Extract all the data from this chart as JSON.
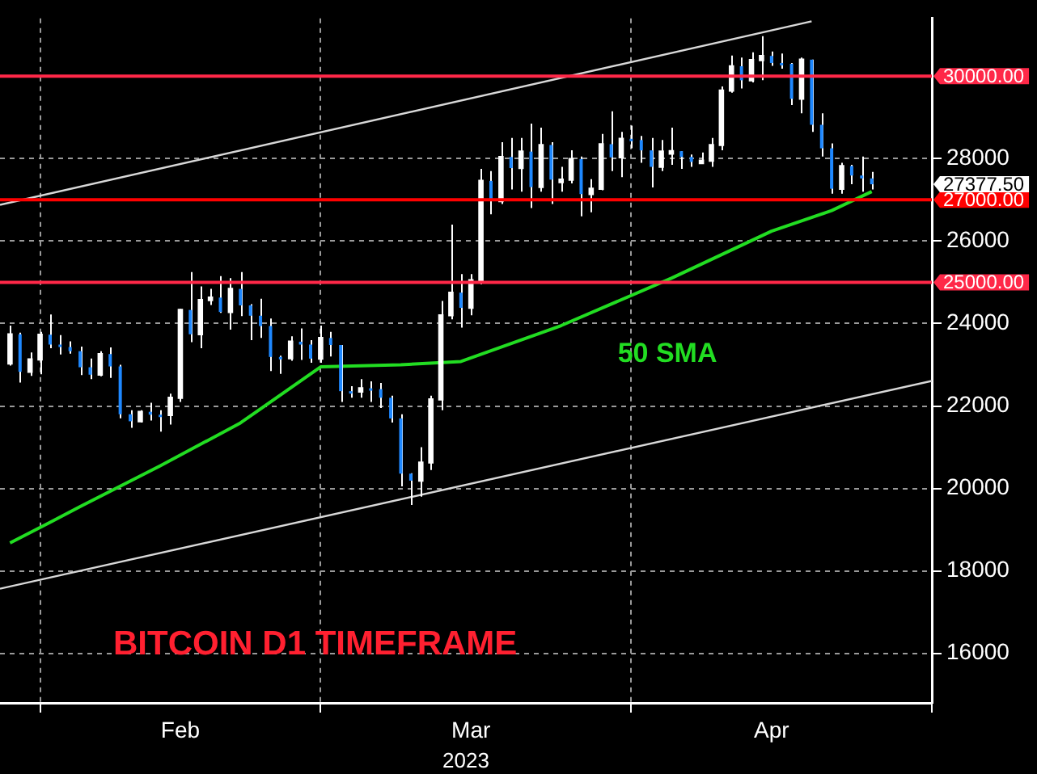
{
  "chart_data": {
    "type": "candlestick",
    "title": "BITCOIN D1 TIMEFRAME",
    "xlabel": "2023",
    "x": [
      "2023-01-29",
      "2023-01-30",
      "2023-01-31",
      "2023-02-01",
      "2023-02-02",
      "2023-02-03",
      "2023-02-04",
      "2023-02-05",
      "2023-02-06",
      "2023-02-07",
      "2023-02-08",
      "2023-02-09",
      "2023-02-10",
      "2023-02-11",
      "2023-02-12",
      "2023-02-13",
      "2023-02-14",
      "2023-02-15",
      "2023-02-16",
      "2023-02-17",
      "2023-02-18",
      "2023-02-19",
      "2023-02-20",
      "2023-02-21",
      "2023-02-22",
      "2023-02-23",
      "2023-02-24",
      "2023-02-25",
      "2023-02-26",
      "2023-02-27",
      "2023-02-28",
      "2023-03-01",
      "2023-03-02",
      "2023-03-03",
      "2023-03-04",
      "2023-03-05",
      "2023-03-06",
      "2023-03-07",
      "2023-03-08",
      "2023-03-09",
      "2023-03-10",
      "2023-03-11",
      "2023-03-12",
      "2023-03-13",
      "2023-03-14",
      "2023-03-15",
      "2023-03-16",
      "2023-03-17",
      "2023-03-18",
      "2023-03-19",
      "2023-03-20",
      "2023-03-21",
      "2023-03-22",
      "2023-03-23",
      "2023-03-24",
      "2023-03-25",
      "2023-03-26",
      "2023-03-27",
      "2023-03-28",
      "2023-03-29",
      "2023-03-30",
      "2023-03-31",
      "2023-04-01",
      "2023-04-02",
      "2023-04-03",
      "2023-04-04",
      "2023-04-05",
      "2023-04-06",
      "2023-04-07",
      "2023-04-08",
      "2023-04-09",
      "2023-04-10",
      "2023-04-11",
      "2023-04-12",
      "2023-04-13",
      "2023-04-14",
      "2023-04-15",
      "2023-04-16",
      "2023-04-17",
      "2023-04-18",
      "2023-04-19",
      "2023-04-20",
      "2023-04-21",
      "2023-04-22",
      "2023-04-23",
      "2023-04-24",
      "2023-04-25"
    ],
    "ohlc": [
      [
        23030,
        23950,
        22980,
        23740
      ],
      [
        23740,
        23780,
        22570,
        22830
      ],
      [
        22830,
        23300,
        22730,
        23130
      ],
      [
        23130,
        23800,
        22770,
        23730
      ],
      [
        23730,
        24220,
        23400,
        23490
      ],
      [
        23490,
        23720,
        23250,
        23430
      ],
      [
        23430,
        23570,
        23270,
        23330
      ],
      [
        23330,
        23440,
        22750,
        22940
      ],
      [
        22940,
        23150,
        22650,
        22760
      ],
      [
        22760,
        23330,
        22720,
        23260
      ],
      [
        23260,
        23420,
        22680,
        22960
      ],
      [
        22960,
        23000,
        21700,
        21800
      ],
      [
        21800,
        21900,
        21470,
        21630
      ],
      [
        21630,
        21900,
        21600,
        21860
      ],
      [
        21860,
        22080,
        21650,
        21790
      ],
      [
        21790,
        21900,
        21380,
        21780
      ],
      [
        21780,
        22300,
        21550,
        22200
      ],
      [
        22200,
        24350,
        22100,
        24330
      ],
      [
        24330,
        25250,
        23550,
        23740
      ],
      [
        23740,
        24900,
        23400,
        24570
      ],
      [
        24570,
        24840,
        24450,
        24630
      ],
      [
        24630,
        25150,
        24260,
        24280
      ],
      [
        24280,
        25100,
        23850,
        24840
      ],
      [
        24840,
        25250,
        24180,
        24440
      ],
      [
        24440,
        24470,
        23600,
        24190
      ],
      [
        24190,
        24600,
        23650,
        23940
      ],
      [
        23940,
        24120,
        22850,
        23190
      ],
      [
        23190,
        23220,
        22780,
        23160
      ],
      [
        23160,
        23690,
        23100,
        23560
      ],
      [
        23560,
        23880,
        23120,
        23490
      ],
      [
        23490,
        23600,
        23050,
        23150
      ],
      [
        23150,
        23950,
        23050,
        23650
      ],
      [
        23650,
        23800,
        23200,
        23480
      ],
      [
        23480,
        23480,
        22100,
        22360
      ],
      [
        22360,
        22480,
        22200,
        22350
      ],
      [
        22350,
        22650,
        22200,
        22430
      ],
      [
        22430,
        22600,
        22100,
        22410
      ],
      [
        22410,
        22560,
        21950,
        22200
      ],
      [
        22200,
        22250,
        21600,
        21700
      ],
      [
        21700,
        21800,
        20050,
        20360
      ],
      [
        20360,
        20370,
        19600,
        20190
      ],
      [
        20190,
        21000,
        19800,
        20630
      ],
      [
        20630,
        22250,
        20450,
        22160
      ],
      [
        22160,
        24550,
        21900,
        24200
      ],
      [
        24200,
        26400,
        24100,
        24750
      ],
      [
        24750,
        25200,
        23900,
        24380
      ],
      [
        24380,
        25200,
        24200,
        25050
      ],
      [
        25050,
        27750,
        24950,
        27460
      ],
      [
        27460,
        27700,
        26650,
        26970
      ],
      [
        26970,
        28400,
        26900,
        28040
      ],
      [
        28040,
        28500,
        27250,
        27770
      ],
      [
        27770,
        28500,
        27200,
        28170
      ],
      [
        28170,
        28850,
        26800,
        27310
      ],
      [
        27310,
        28750,
        27200,
        28330
      ],
      [
        28330,
        28400,
        26900,
        27490
      ],
      [
        27490,
        27800,
        27200,
        27490
      ],
      [
        27490,
        28200,
        27400,
        27990
      ],
      [
        27990,
        28050,
        26600,
        27140
      ],
      [
        27140,
        27500,
        26700,
        27270
      ],
      [
        27270,
        28600,
        27230,
        28350
      ],
      [
        28350,
        29150,
        27700,
        28030
      ],
      [
        28030,
        28650,
        27550,
        28480
      ],
      [
        28480,
        28800,
        28250,
        28450
      ],
      [
        28450,
        28550,
        27900,
        28200
      ],
      [
        28200,
        28500,
        27300,
        27800
      ],
      [
        27800,
        28450,
        27700,
        28170
      ],
      [
        28170,
        28750,
        27850,
        28180
      ],
      [
        28180,
        28180,
        27750,
        28040
      ],
      [
        28040,
        28100,
        27800,
        27920
      ],
      [
        27920,
        28150,
        27880,
        27950
      ],
      [
        27950,
        28500,
        27800,
        28330
      ],
      [
        28330,
        29750,
        28200,
        29650
      ],
      [
        29650,
        30500,
        29600,
        30240
      ],
      [
        30240,
        30450,
        29700,
        29900
      ],
      [
        29900,
        30580,
        29850,
        30390
      ],
      [
        30390,
        30970,
        29900,
        30490
      ],
      [
        30490,
        30600,
        30250,
        30320
      ],
      [
        30320,
        30550,
        30180,
        30300
      ],
      [
        30300,
        30320,
        29300,
        29450
      ],
      [
        29450,
        30450,
        29100,
        30400
      ],
      [
        30400,
        30400,
        28650,
        28820
      ],
      [
        28820,
        29100,
        28050,
        28250
      ],
      [
        28250,
        28370,
        27150,
        27270
      ],
      [
        27270,
        27900,
        27150,
        27820
      ],
      [
        27820,
        27850,
        27380,
        27590
      ],
      [
        27590,
        28050,
        27200,
        27520
      ],
      [
        27520,
        27680,
        27250,
        27377.5
      ]
    ],
    "colors": [
      "#ffffff",
      "#1e88ff",
      "#ffffff",
      "#ffffff",
      "#1e88ff",
      "#1e88ff",
      "#1e88ff",
      "#1e88ff",
      "#1e88ff",
      "#ffffff",
      "#1e88ff",
      "#1e88ff",
      "#1e88ff",
      "#ffffff",
      "#1e88ff",
      "#1e88ff",
      "#ffffff",
      "#ffffff",
      "#1e88ff",
      "#ffffff",
      "#ffffff",
      "#1e88ff",
      "#ffffff",
      "#1e88ff",
      "#1e88ff",
      "#1e88ff",
      "#1e88ff",
      "#1e88ff",
      "#ffffff",
      "#1e88ff",
      "#1e88ff",
      "#ffffff",
      "#1e88ff",
      "#1e88ff",
      "#1e88ff",
      "#ffffff",
      "#1e88ff",
      "#1e88ff",
      "#1e88ff",
      "#1e88ff",
      "#1e88ff",
      "#ffffff",
      "#ffffff",
      "#ffffff",
      "#ffffff",
      "#1e88ff",
      "#ffffff",
      "#ffffff",
      "#1e88ff",
      "#ffffff",
      "#1e88ff",
      "#ffffff",
      "#1e88ff",
      "#ffffff",
      "#1e88ff",
      "#1e88ff",
      "#ffffff",
      "#1e88ff",
      "#ffffff",
      "#ffffff",
      "#1e88ff",
      "#ffffff",
      "#1e88ff",
      "#1e88ff",
      "#1e88ff",
      "#ffffff",
      "#ffffff",
      "#1e88ff",
      "#1e88ff",
      "#ffffff",
      "#ffffff",
      "#ffffff",
      "#ffffff",
      "#1e88ff",
      "#ffffff",
      "#ffffff",
      "#1e88ff",
      "#1e88ff",
      "#1e88ff",
      "#ffffff",
      "#1e88ff",
      "#1e88ff",
      "#1e88ff",
      "#ffffff",
      "#1e88ff",
      "#1e88ff",
      "#1e88ff"
    ],
    "series": [
      {
        "type": "line",
        "name": "50 SMA",
        "color": "#22dd22",
        "x": [
          "2023-01-29",
          "2023-02-02",
          "2023-02-05",
          "2023-02-13",
          "2023-02-21",
          "2023-03-01",
          "2023-03-09",
          "2023-03-15",
          "2023-03-25",
          "2023-04-05",
          "2023-04-15",
          "2023-04-21",
          "2023-04-25"
        ],
        "values": [
          18680,
          19180,
          19560,
          20550,
          21590,
          22950,
          23000,
          23080,
          23950,
          25100,
          26240,
          26740,
          27200
        ]
      },
      {
        "type": "line",
        "color": "#d8d8d8",
        "x": [
          "2023-01-28",
          "2023-04-19"
        ],
        "values": [
          26880,
          31330
        ]
      },
      {
        "type": "line",
        "color": "#d8d8d8",
        "x": [
          "2023-01-28",
          "2023-05-01"
        ],
        "values": [
          17570,
          22610
        ]
      }
    ],
    "xlim": [
      "2023-01-28",
      "2023-05-01"
    ],
    "xticks": [
      {
        "value": "2023-02-01",
        "label": null
      },
      {
        "value": "2023-02-15",
        "label": "Feb"
      },
      {
        "value": "2023-03-01",
        "label": null
      },
      {
        "value": "2023-03-16",
        "label": "Mar"
      },
      {
        "value": "2023-04-01",
        "label": null
      },
      {
        "value": "2023-04-15",
        "label": "Apr"
      },
      {
        "value": "2023-05-01",
        "label": null
      }
    ],
    "ylim": [
      14800,
      31400
    ],
    "yticks": [
      16000,
      18000,
      20000,
      22000,
      24000,
      26000,
      28000
    ],
    "grid": true,
    "legend": false,
    "ref_lines": [
      {
        "axis": "y",
        "value": 30000,
        "label": "30000.00",
        "color": "#ff2848"
      },
      {
        "axis": "y",
        "value": 27000,
        "label": "27000.00",
        "color": "#ff0000"
      },
      {
        "axis": "y",
        "value": 25000,
        "label": "25000.00",
        "color": "#ff2848"
      }
    ],
    "annotations": [
      "27377.50"
    ]
  }
}
